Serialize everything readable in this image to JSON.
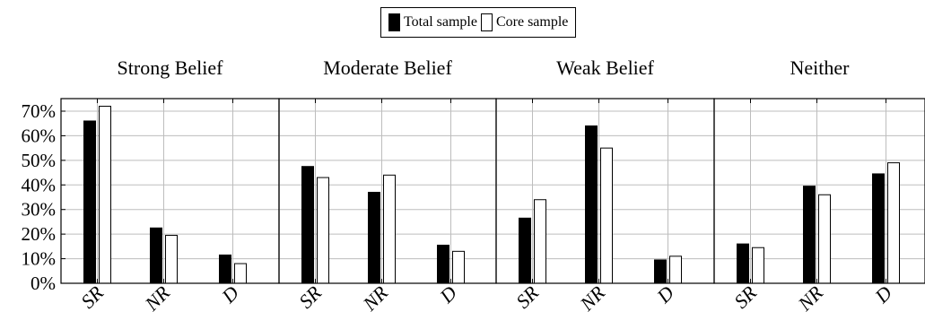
{
  "chart_data": {
    "type": "bar",
    "legend": {
      "placement": "top-center",
      "entries": [
        {
          "name": "Total sample",
          "fill": "#000000"
        },
        {
          "name": "Core sample",
          "fill": "#ffffff"
        }
      ]
    },
    "ylim": [
      0,
      75
    ],
    "yticks": [
      0,
      10,
      20,
      30,
      40,
      50,
      60,
      70
    ],
    "ytick_labels": [
      "0%",
      "10%",
      "20%",
      "30%",
      "40%",
      "50%",
      "60%",
      "70%"
    ],
    "grid": true,
    "categories": [
      "SR",
      "NR",
      "D"
    ],
    "panels": [
      {
        "title": "Strong Belief",
        "series": [
          {
            "name": "Total sample",
            "values": [
              66,
              22.5,
              11.5
            ]
          },
          {
            "name": "Core sample",
            "values": [
              72,
              19.5,
              8
            ]
          }
        ]
      },
      {
        "title": "Moderate Belief",
        "series": [
          {
            "name": "Total sample",
            "values": [
              47.5,
              37,
              15.5
            ]
          },
          {
            "name": "Core sample",
            "values": [
              43,
              44,
              13
            ]
          }
        ]
      },
      {
        "title": "Weak Belief",
        "series": [
          {
            "name": "Total sample",
            "values": [
              26.5,
              64,
              9.5
            ]
          },
          {
            "name": "Core sample",
            "values": [
              34,
              55,
              11
            ]
          }
        ]
      },
      {
        "title": "Neither",
        "series": [
          {
            "name": "Total sample",
            "values": [
              16,
              39.5,
              44.5
            ]
          },
          {
            "name": "Core sample",
            "values": [
              14.5,
              36,
              49
            ]
          }
        ]
      }
    ]
  }
}
